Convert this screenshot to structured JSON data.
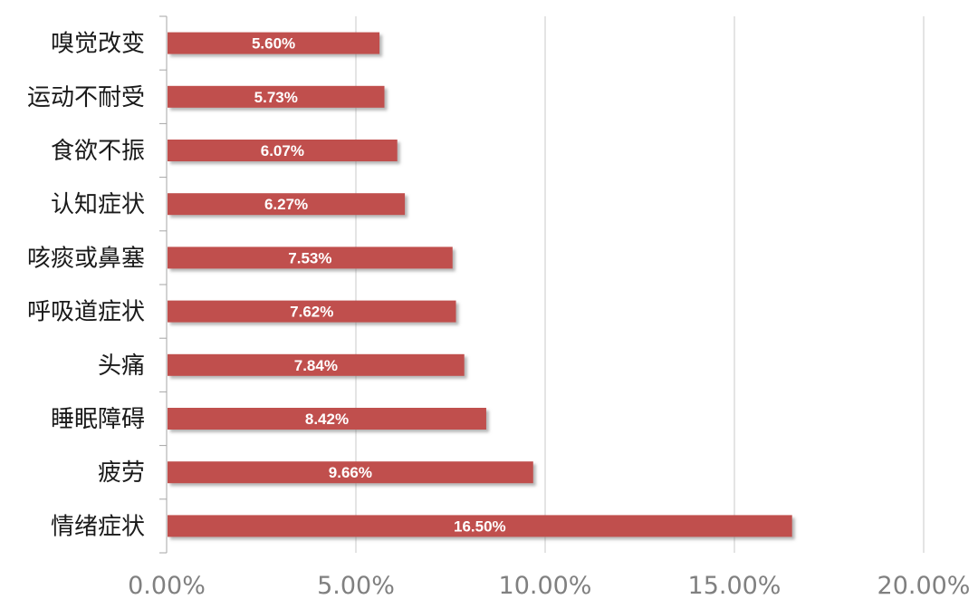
{
  "chart_data": {
    "type": "bar",
    "orientation": "horizontal",
    "categories": [
      "嗅觉改变",
      "运动不耐受",
      "食欲不振",
      "认知症状",
      "咳痰或鼻塞",
      "呼吸道症状",
      "头痛",
      "睡眠障碍",
      "疲劳",
      "情绪症状"
    ],
    "values": [
      5.6,
      5.73,
      6.07,
      6.27,
      7.53,
      7.62,
      7.84,
      8.42,
      9.66,
      16.5
    ],
    "data_labels": [
      "5.60%",
      "5.73%",
      "6.07%",
      "6.27%",
      "7.53%",
      "7.62%",
      "7.84%",
      "8.42%",
      "9.66%",
      "16.50%"
    ],
    "xlim": [
      0,
      20
    ],
    "x_ticks": [
      0,
      5,
      10,
      15,
      20
    ],
    "x_tick_labels": [
      "0.00%",
      "5.00%",
      "10.00%",
      "15.00%",
      "20.00%"
    ],
    "title": "",
    "xlabel": "",
    "ylabel": "",
    "grid": true,
    "legend": "none",
    "colors": {
      "bar": "#C0504D",
      "bar_shadow": "#9a9a9a",
      "grid": "#c8c8c8",
      "axis": "#a6a6a6",
      "category_text": "#1a1a1a",
      "tick_text": "#808080",
      "data_label_text": "#ffffff"
    }
  }
}
